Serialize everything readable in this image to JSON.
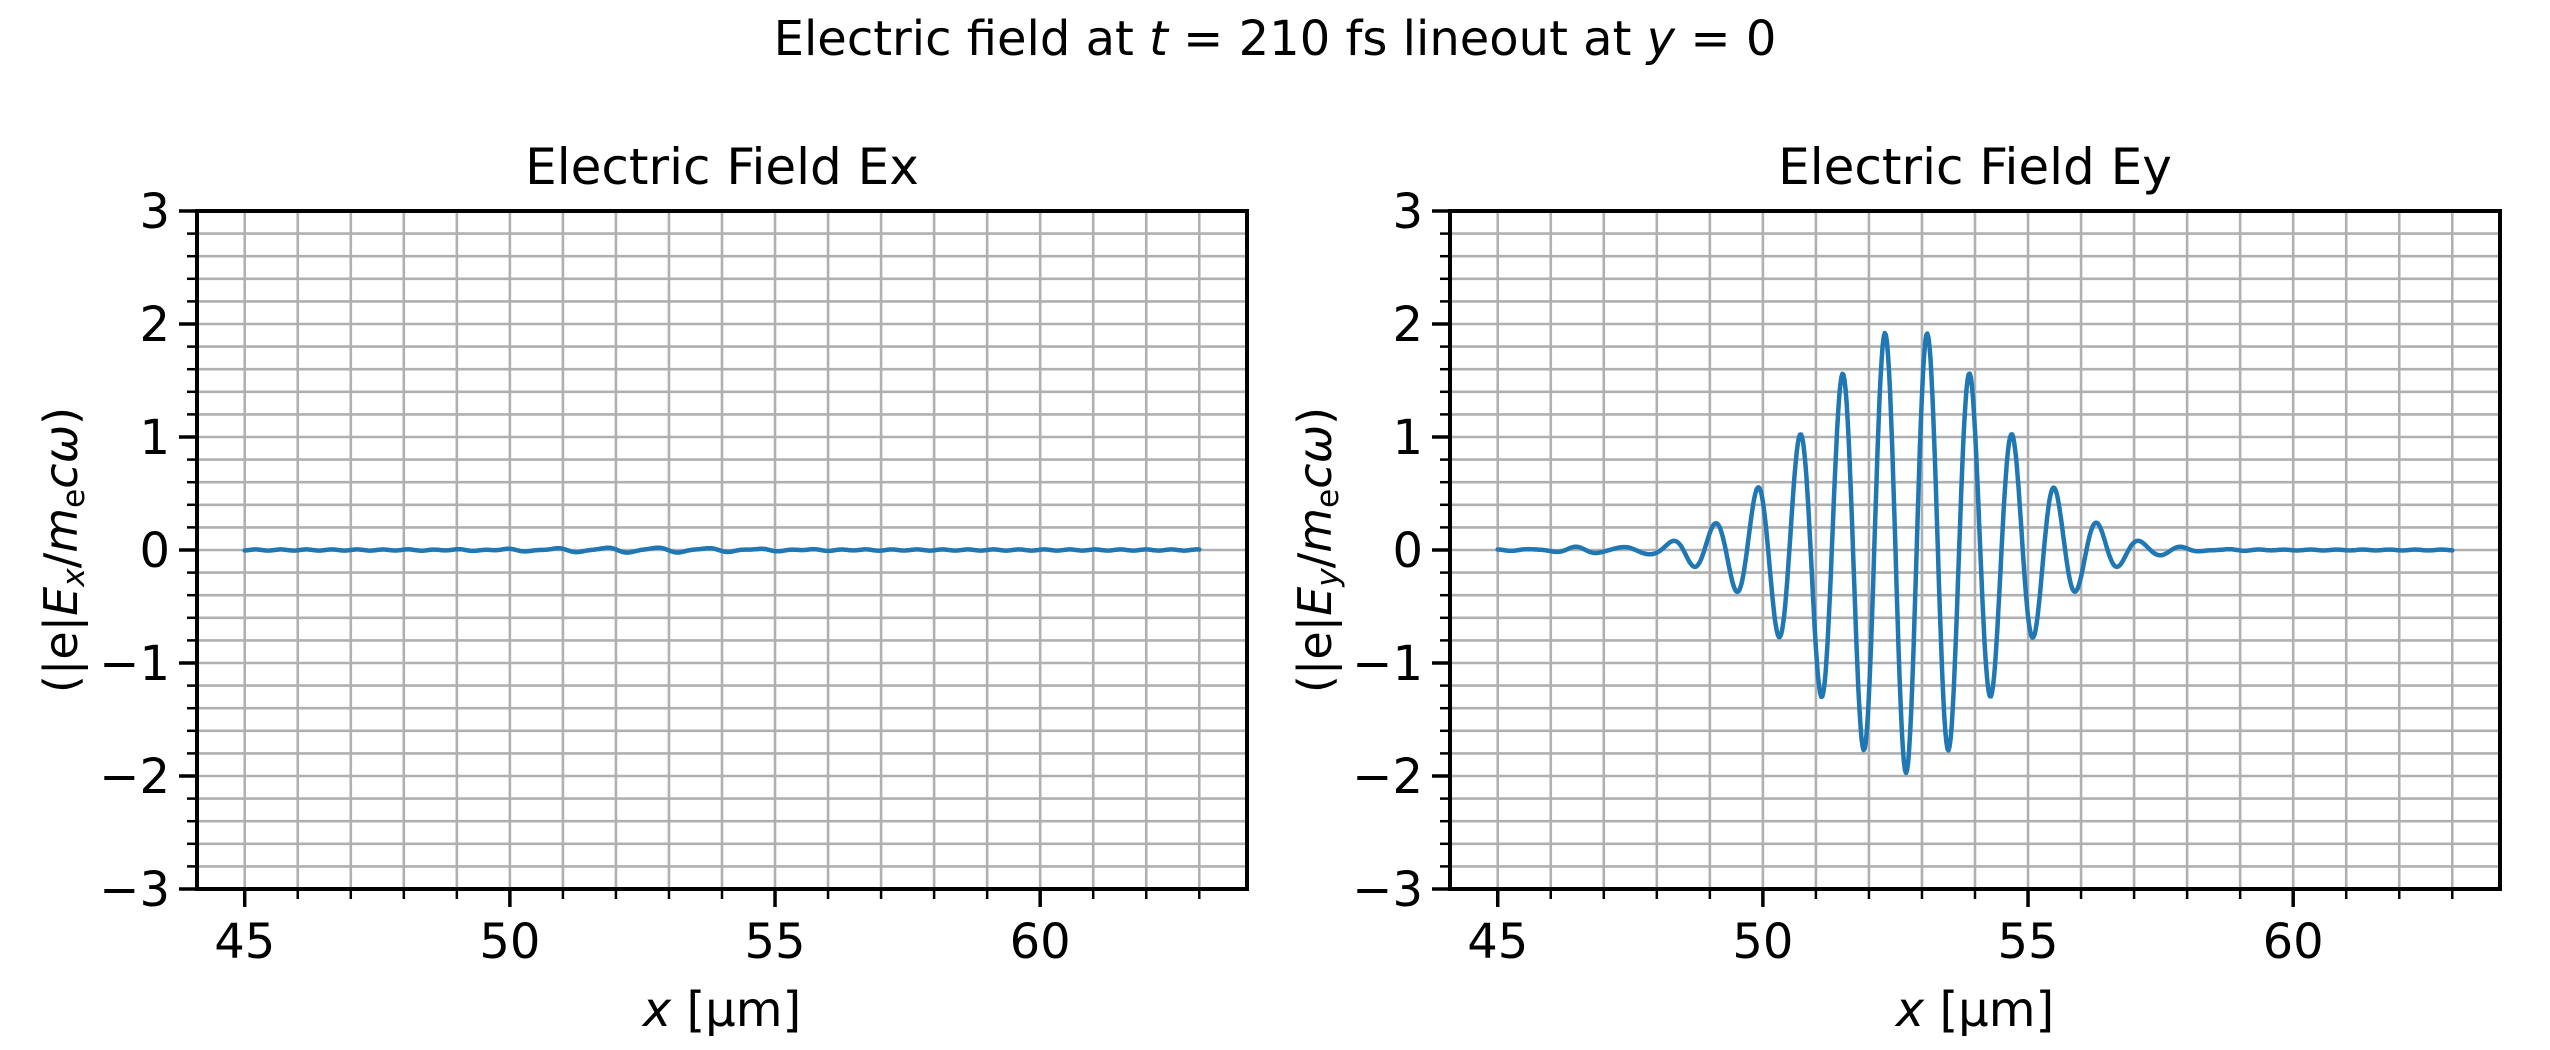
{
  "figure": {
    "suptitle": {
      "text": "Electric field at t = 210 fs lineout at y = 0",
      "segments": [
        {
          "t": "Electric field at "
        },
        {
          "t": "t",
          "italic": true
        },
        {
          "t": " = 210 fs lineout at "
        },
        {
          "t": "y",
          "italic": true
        },
        {
          "t": " = 0"
        }
      ]
    },
    "colors": {
      "line": "#1f77b4",
      "grid": "#b0b0b0",
      "spine": "#000000",
      "background": "#ffffff",
      "text": "#000000"
    }
  },
  "chart_data": [
    {
      "type": "line",
      "title": "Electric Field Ex",
      "xlabel": "x [μm]",
      "xlabel_segments": [
        {
          "t": "x",
          "italic": true
        },
        {
          "t": " [μm]"
        }
      ],
      "ylabel": "(|e|Ex/mecω)",
      "ylabel_segments": [
        {
          "t": "(|e|"
        },
        {
          "t": "E",
          "italic": true
        },
        {
          "t": "x",
          "italic": true,
          "sub": true
        },
        {
          "t": "/"
        },
        {
          "t": "m",
          "italic": true
        },
        {
          "t": "e",
          "sub": true
        },
        {
          "t": "c",
          "italic": true
        },
        {
          "t": "ω",
          "italic": true
        },
        {
          "t": ")"
        }
      ],
      "xlim": [
        44.1,
        63.9
      ],
      "ylim": [
        -3,
        3
      ],
      "xticks_major": [
        45,
        50,
        55,
        60
      ],
      "xtick_labels": [
        "45",
        "50",
        "55",
        "60"
      ],
      "xtick_minor_step": 1,
      "yticks_major": [
        -3,
        -2,
        -1,
        0,
        1,
        2,
        3
      ],
      "ytick_labels": [
        "−3",
        "−2",
        "−1",
        "0",
        "1",
        "2",
        "3"
      ],
      "ytick_minor_step": 0.2,
      "grid": "both major and minor, on",
      "legend": "none",
      "series": [
        {
          "name": "Ex",
          "color": "#1f77b4",
          "x_start": 45,
          "x_end": 63,
          "model": {
            "type": "flat_with_noise",
            "level": 0,
            "noise_amp": 0.02,
            "noise_center": 52.5,
            "noise_sigma": 1.8,
            "ripple_amp": 0.005
          },
          "description": "Ex is approximately 0 over the whole range 45–63 μm, with barely visible ripple (|Ex| < 0.03) around x ≈ 50.5–54.5"
        }
      ]
    },
    {
      "type": "line",
      "title": "Electric Field Ey",
      "xlabel": "x [μm]",
      "xlabel_segments": [
        {
          "t": "x",
          "italic": true
        },
        {
          "t": " [μm]"
        }
      ],
      "ylabel": "(|e|Ey/mecω)",
      "ylabel_segments": [
        {
          "t": "(|e|"
        },
        {
          "t": "E",
          "italic": true
        },
        {
          "t": "y",
          "italic": true,
          "sub": true
        },
        {
          "t": "/"
        },
        {
          "t": "m",
          "italic": true
        },
        {
          "t": "e",
          "sub": true
        },
        {
          "t": "c",
          "italic": true
        },
        {
          "t": "ω",
          "italic": true
        },
        {
          "t": ")"
        }
      ],
      "xlim": [
        44.1,
        63.9
      ],
      "ylim": [
        -3,
        3
      ],
      "xticks_major": [
        45,
        50,
        55,
        60
      ],
      "xtick_labels": [
        "45",
        "50",
        "55",
        "60"
      ],
      "xtick_minor_step": 1,
      "yticks_major": [
        -3,
        -2,
        -1,
        0,
        1,
        2,
        3
      ],
      "ytick_labels": [
        "−3",
        "−2",
        "−1",
        "0",
        "1",
        "2",
        "3"
      ],
      "ytick_minor_step": 0.2,
      "grid": "both major and minor, on",
      "legend": "none",
      "series": [
        {
          "name": "Ey",
          "color": "#1f77b4",
          "x_start": 45,
          "x_end": 63,
          "model": {
            "type": "gaussian_wave_packet",
            "amplitude": 1.97,
            "center": 52.7,
            "sigma": 1.75,
            "wavelength": 0.8,
            "carrier": "negative_cosine",
            "baseline_noise_amp": 0.03,
            "noise_center": 46.9,
            "noise_sigma": 0.8,
            "ripple_amp": 0.004
          },
          "key_extrema": {
            "peaks": [
              [
                48.3,
                0.08
              ],
              [
                49.1,
                0.24
              ],
              [
                49.9,
                0.55
              ],
              [
                50.7,
                1.02
              ],
              [
                51.5,
                1.56
              ],
              [
                52.3,
                1.92
              ],
              [
                53.1,
                1.92
              ],
              [
                53.9,
                1.56
              ],
              [
                54.7,
                1.02
              ],
              [
                55.5,
                0.55
              ],
              [
                56.3,
                0.24
              ],
              [
                57.1,
                0.08
              ]
            ],
            "troughs": [
              [
                48.7,
                -0.14
              ],
              [
                49.5,
                -0.37
              ],
              [
                50.3,
                -0.77
              ],
              [
                51.1,
                -1.3
              ],
              [
                51.9,
                -1.77
              ],
              [
                52.7,
                -1.97
              ],
              [
                53.5,
                -1.77
              ],
              [
                54.3,
                -1.3
              ],
              [
                55.1,
                -0.77
              ],
              [
                55.9,
                -0.37
              ],
              [
                56.7,
                -0.14
              ]
            ],
            "flat_regions": [
              [
                45,
                47.5
              ],
              [
                57.2,
                63
              ]
            ]
          },
          "description": "Gaussian laser wave packet centered at x ≈ 52.7 μm, peak amplitude ≈ 1.9, deepest trough ≈ −2.0, carrier wavelength ≈ 0.8 μm; field ≈ 0 outside 48–57 μm"
        }
      ]
    }
  ]
}
